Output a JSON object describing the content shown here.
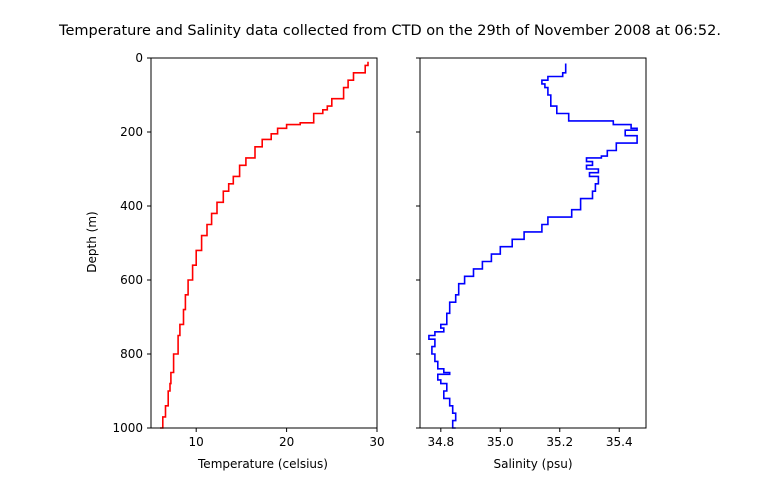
{
  "chart_data": [
    {
      "type": "line",
      "title": "Temperature and Salinity data collected from CTD on the 29th of November 2008 at 06:52.",
      "xlabel": "Temperature (celsius)",
      "ylabel": "Depth  (m)",
      "xlim": [
        5,
        30
      ],
      "ylim": [
        1000,
        0
      ],
      "y_inverted": true,
      "xticks": [
        "10",
        "20",
        "30"
      ],
      "yticks": [
        "0",
        "200",
        "400",
        "600",
        "800",
        "1000"
      ],
      "grid": false,
      "color": "#ff0000",
      "series": [
        {
          "x": [
            29.0,
            28.7,
            27.4,
            26.8,
            26.3,
            25.0,
            24.5,
            24.0,
            23.0,
            21.5,
            20.0,
            19.0,
            18.3,
            17.3,
            16.5,
            15.5,
            14.8,
            14.1,
            13.6,
            13.0,
            12.3,
            11.7,
            11.2,
            10.6,
            10.0,
            9.6,
            9.1,
            8.8,
            8.6,
            8.2,
            8.0,
            7.5,
            7.2,
            7.1,
            6.9,
            6.6,
            6.3,
            6.0
          ],
          "y": [
            10,
            20,
            40,
            60,
            80,
            110,
            130,
            140,
            150,
            175,
            180,
            190,
            205,
            220,
            240,
            270,
            290,
            320,
            340,
            360,
            390,
            420,
            450,
            480,
            520,
            560,
            600,
            640,
            680,
            720,
            750,
            800,
            850,
            880,
            900,
            940,
            970,
            1000
          ]
        }
      ]
    },
    {
      "type": "line",
      "xlabel": "Salinity (psu)",
      "xlim": [
        34.73,
        35.49
      ],
      "ylim": [
        1000,
        0
      ],
      "y_inverted": true,
      "xticks": [
        "34.8",
        "35.0",
        "35.2",
        "35.4"
      ],
      "grid": false,
      "color": "#0000ff",
      "series": [
        {
          "x": [
            35.22,
            35.21,
            35.16,
            35.14,
            35.15,
            35.16,
            35.16,
            35.17,
            35.19,
            35.23,
            35.38,
            35.44,
            35.46,
            35.42,
            35.46,
            35.39,
            35.36,
            35.34,
            35.29,
            35.31,
            35.29,
            35.33,
            35.3,
            35.33,
            35.32,
            35.31,
            35.27,
            35.27,
            35.24,
            35.16,
            35.14,
            35.08,
            35.04,
            35.0,
            34.97,
            34.94,
            34.91,
            34.88,
            34.86,
            34.85,
            34.83,
            34.82,
            34.8,
            34.81,
            34.78,
            34.76,
            34.78,
            34.77,
            34.78,
            34.79,
            34.81,
            34.83,
            34.79,
            34.8,
            34.82,
            34.81,
            34.83,
            34.84,
            34.85,
            34.84,
            34.85
          ],
          "y": [
            15,
            40,
            50,
            60,
            70,
            80,
            90,
            100,
            130,
            150,
            170,
            180,
            190,
            195,
            210,
            230,
            250,
            265,
            270,
            280,
            290,
            300,
            310,
            320,
            340,
            360,
            380,
            400,
            410,
            430,
            450,
            470,
            490,
            510,
            530,
            550,
            570,
            590,
            610,
            640,
            660,
            690,
            720,
            730,
            740,
            750,
            760,
            780,
            800,
            820,
            840,
            850,
            855,
            870,
            880,
            900,
            920,
            940,
            960,
            980,
            1000
          ]
        }
      ]
    }
  ]
}
